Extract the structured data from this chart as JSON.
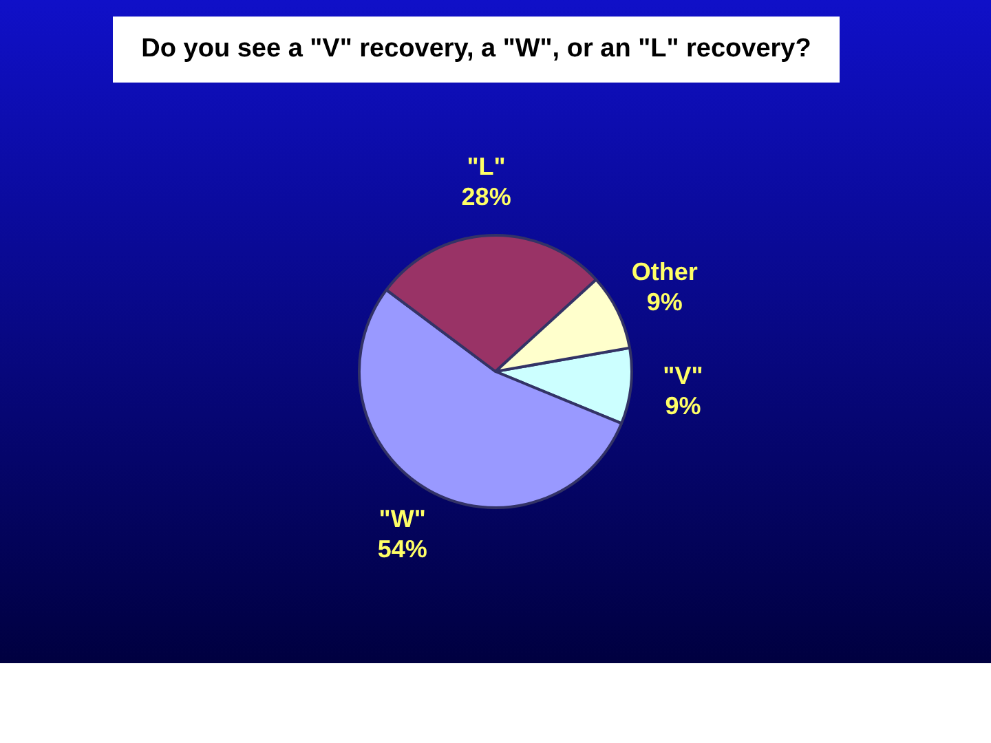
{
  "chart_data": {
    "type": "pie",
    "title": "Do you see a \"V\" recovery, a \"W\", or an \"L\" recovery?",
    "categories": [
      "\"V\"",
      "\"W\"",
      "\"L\"",
      "Other"
    ],
    "values": [
      9,
      54,
      28,
      9
    ],
    "value_labels": [
      "9%",
      "54%",
      "28%",
      "9%"
    ],
    "colors": [
      "#ccffff",
      "#9999ff",
      "#993366",
      "#ffffcc"
    ],
    "legend": false
  }
}
